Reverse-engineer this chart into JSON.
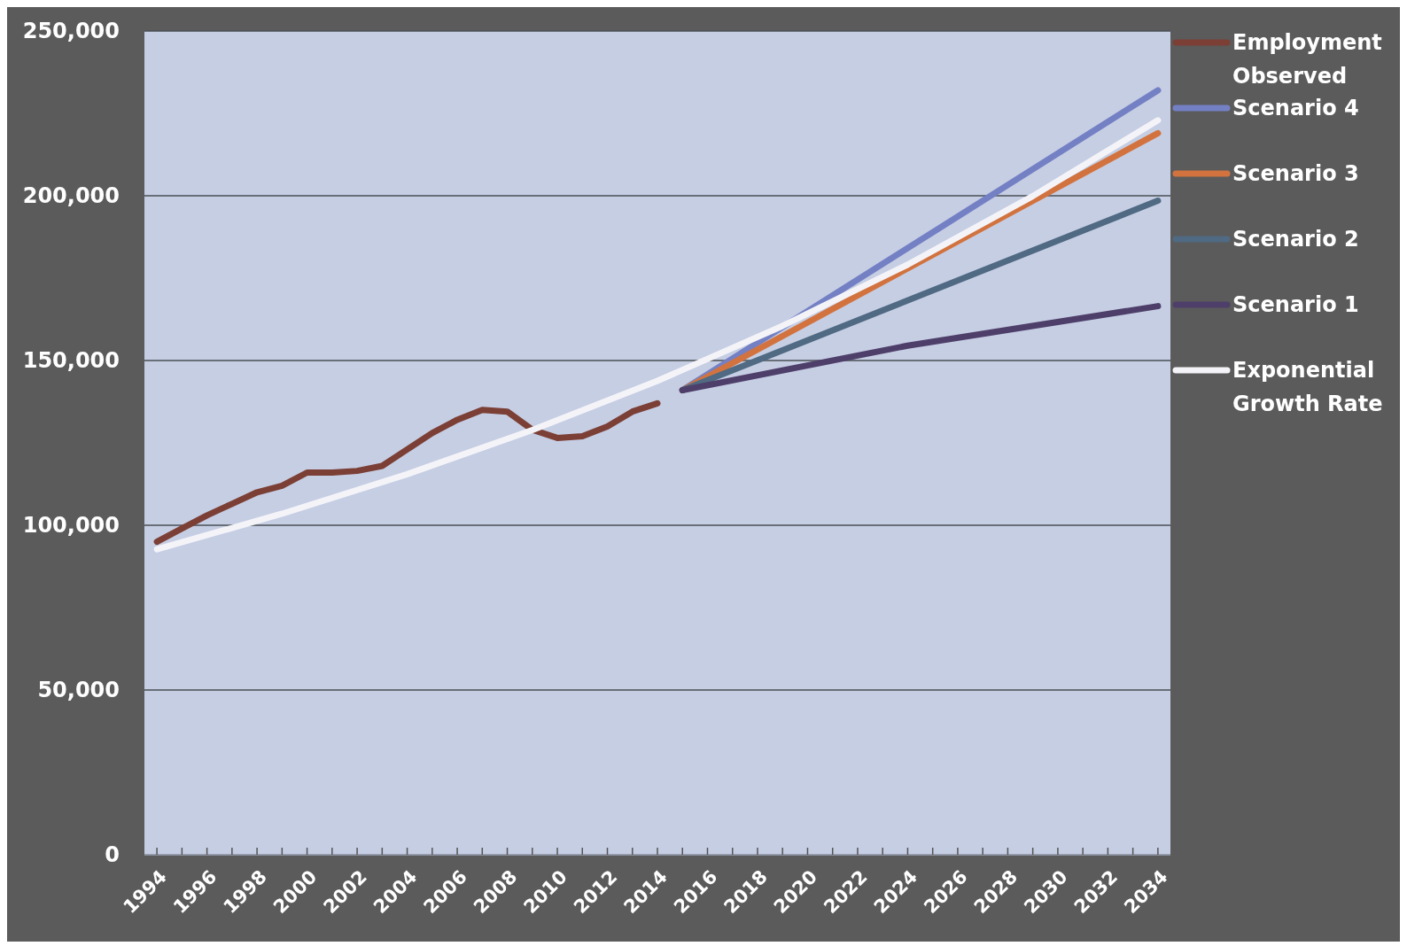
{
  "chart_data": {
    "type": "line",
    "xlim": [
      1993.5,
      2034.5
    ],
    "xticks": [
      1994,
      {
        "value": 1995,
        "label": null
      },
      1996,
      {
        "value": 1997,
        "label": null
      },
      1998,
      {
        "value": 1999,
        "label": null
      },
      2000,
      {
        "value": 2001,
        "label": null
      },
      2002,
      {
        "value": 2003,
        "label": null
      },
      2004,
      {
        "value": 2005,
        "label": null
      },
      2006,
      {
        "value": 2007,
        "label": null
      },
      2008,
      {
        "value": 2009,
        "label": null
      },
      2010,
      {
        "value": 2011,
        "label": null
      },
      2012,
      {
        "value": 2013,
        "label": null
      },
      2014,
      {
        "value": 2015,
        "label": null
      },
      2016,
      {
        "value": 2017,
        "label": null
      },
      2018,
      {
        "value": 2019,
        "label": null
      },
      2020,
      {
        "value": 2021,
        "label": null
      },
      2022,
      {
        "value": 2023,
        "label": null
      },
      2024,
      {
        "value": 2025,
        "label": null
      },
      2026,
      {
        "value": 2027,
        "label": null
      },
      2028,
      {
        "value": 2029,
        "label": null
      },
      2030,
      {
        "value": 2031,
        "label": null
      },
      2032,
      {
        "value": 2033,
        "label": null
      },
      2034
    ],
    "ylim": [
      0,
      250000
    ],
    "yticks": [
      {
        "value": 0,
        "label": "0"
      },
      {
        "value": 50000,
        "label": "50,000"
      },
      {
        "value": 100000,
        "label": "100,000"
      },
      {
        "value": 150000,
        "label": "150,000"
      },
      {
        "value": 200000,
        "label": "200,000"
      },
      {
        "value": 250000,
        "label": "250,000"
      }
    ],
    "grid": "y",
    "legend": "right",
    "line_style": "solid",
    "series": [
      {
        "name": "Employment Observed",
        "color": "#7b3f35",
        "x": [
          1994,
          1995,
          1996,
          1997,
          1998,
          1999,
          2000,
          2001,
          2002,
          2003,
          2004,
          2005,
          2006,
          2007,
          2008,
          2009,
          2010,
          2011,
          2012,
          2013,
          2014
        ],
        "values": [
          95000,
          99000,
          103000,
          106500,
          110000,
          112000,
          116000,
          116000,
          116500,
          118000,
          123000,
          128000,
          132000,
          135000,
          134500,
          129000,
          126500,
          127000,
          130000,
          134500,
          137000
        ]
      },
      {
        "name": "Scenario 4",
        "color": "#7480c4",
        "x": [
          2015,
          2034
        ],
        "values": [
          141000,
          232000
        ]
      },
      {
        "name": "Scenario 3",
        "color": "#d2733f",
        "x": [
          2015,
          2034
        ],
        "values": [
          141000,
          219000
        ]
      },
      {
        "name": "Scenario 2",
        "color": "#4f6a82",
        "x": [
          2015,
          2034
        ],
        "values": [
          141000,
          198500
        ]
      },
      {
        "name": "Scenario 1",
        "color": "#4e3f6a",
        "x": [
          2015,
          2024,
          2034
        ],
        "values": [
          141000,
          154500,
          166500
        ]
      },
      {
        "name": "Exponential Growth Rate",
        "color": "#f4f4f8",
        "x": [
          1994,
          1999,
          2004,
          2009,
          2014,
          2019,
          2024,
          2029,
          2034
        ],
        "values": [
          92700,
          103500,
          115500,
          128900,
          143800,
          160500,
          179100,
          199900,
          222900
        ]
      }
    ]
  }
}
